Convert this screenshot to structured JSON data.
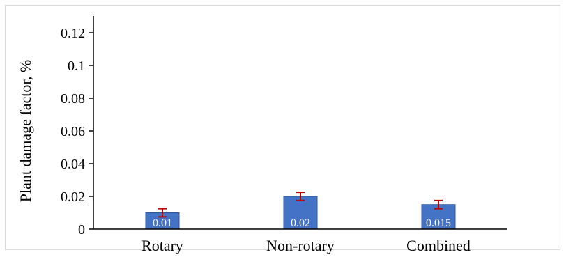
{
  "chart_data": {
    "type": "bar",
    "categories": [
      "Rotary",
      "Non-rotary",
      "Combined"
    ],
    "values": [
      0.01,
      0.02,
      0.015
    ],
    "data_labels": [
      "0.01",
      "0.02",
      "0.015"
    ],
    "error_bars": [
      {
        "low": 0.0075,
        "high": 0.0125
      },
      {
        "low": 0.0175,
        "high": 0.0225
      },
      {
        "low": 0.0125,
        "high": 0.0175
      }
    ],
    "title": "",
    "xlabel": "",
    "ylabel": "Plant damage factor, %",
    "ylim": [
      0,
      0.12
    ],
    "yticks": [
      0,
      0.02,
      0.04,
      0.06,
      0.08,
      0.1,
      0.12
    ],
    "ytick_labels": [
      "0",
      "0.02",
      "0.04",
      "0.06",
      "0.08",
      "0.1",
      "0.12"
    ],
    "grid": false,
    "legend": "none",
    "colors": {
      "bar": "#4472c4",
      "bar_edge": "#2f5597",
      "error_bar": "#c00000",
      "axis": "#000000"
    }
  }
}
